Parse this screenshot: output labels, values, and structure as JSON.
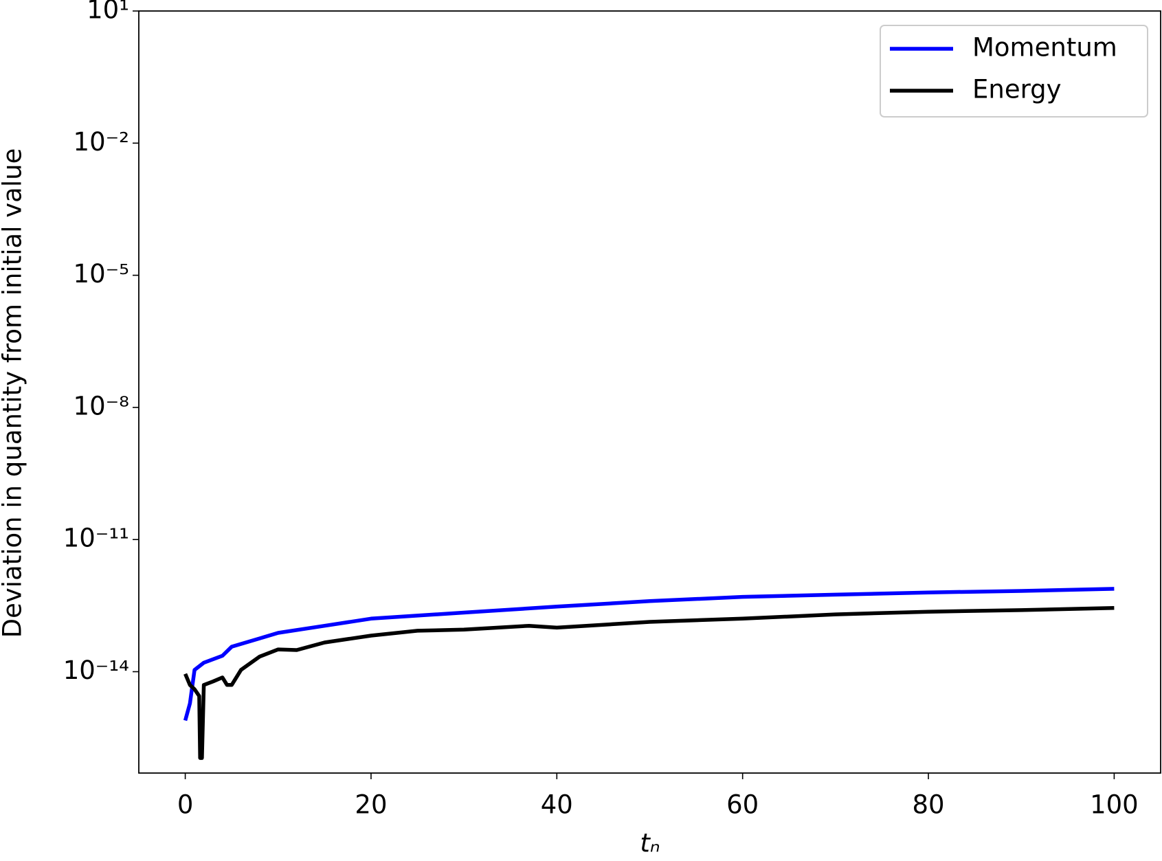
{
  "chart_data": {
    "type": "line",
    "log_y": true,
    "grid": false,
    "legend": "upper right",
    "xlabel": "tₙ",
    "ylabel": "Deviation in quantity from initial value",
    "xlim": [
      -5,
      105
    ],
    "xticks": [
      0,
      20,
      40,
      60,
      80,
      100
    ],
    "ylim": [
      5e-17,
      10
    ],
    "yticks": [
      {
        "value": 10,
        "label": "10¹"
      },
      {
        "value": 0.01,
        "label": "10⁻²"
      },
      {
        "value": 1e-05,
        "label": "10⁻⁵"
      },
      {
        "value": 1e-08,
        "label": "10⁻⁸"
      },
      {
        "value": 1e-11,
        "label": "10⁻¹¹"
      },
      {
        "value": 1e-14,
        "label": "10⁻¹⁴"
      }
    ],
    "series": [
      {
        "name": "Momentum",
        "color": "#0000ff",
        "x": [
          0,
          0.5,
          1,
          2,
          4,
          5,
          8,
          10,
          15,
          20,
          30,
          40,
          50,
          60,
          70,
          80,
          90,
          100
        ],
        "values": [
          7.8e-16,
          1.9e-15,
          1.1e-14,
          1.6e-14,
          2.3e-14,
          3.7e-14,
          5.7e-14,
          7.6e-14,
          1.1e-13,
          1.6e-13,
          2.2e-13,
          3e-13,
          4e-13,
          5e-13,
          5.6e-13,
          6.3e-13,
          6.8e-13,
          7.6e-13
        ]
      },
      {
        "name": "Energy",
        "color": "#000000",
        "x": [
          0,
          0.5,
          1,
          1.5,
          1.6,
          1.8,
          2,
          3,
          4,
          4.5,
          5,
          6,
          8,
          10,
          12,
          15,
          20,
          25,
          30,
          37,
          40,
          50,
          60,
          70,
          80,
          90,
          100
        ],
        "values": [
          8.9e-15,
          5e-15,
          4e-15,
          2.8e-15,
          1.1e-16,
          1.1e-16,
          5e-15,
          6e-15,
          7.4e-15,
          5e-15,
          5e-15,
          1.1e-14,
          2.2e-14,
          3.2e-14,
          3.1e-14,
          4.6e-14,
          6.6e-14,
          8.5e-14,
          9e-14,
          1.1e-13,
          1e-13,
          1.35e-13,
          1.6e-13,
          2e-13,
          2.3e-13,
          2.5e-13,
          2.8e-13
        ]
      }
    ]
  }
}
